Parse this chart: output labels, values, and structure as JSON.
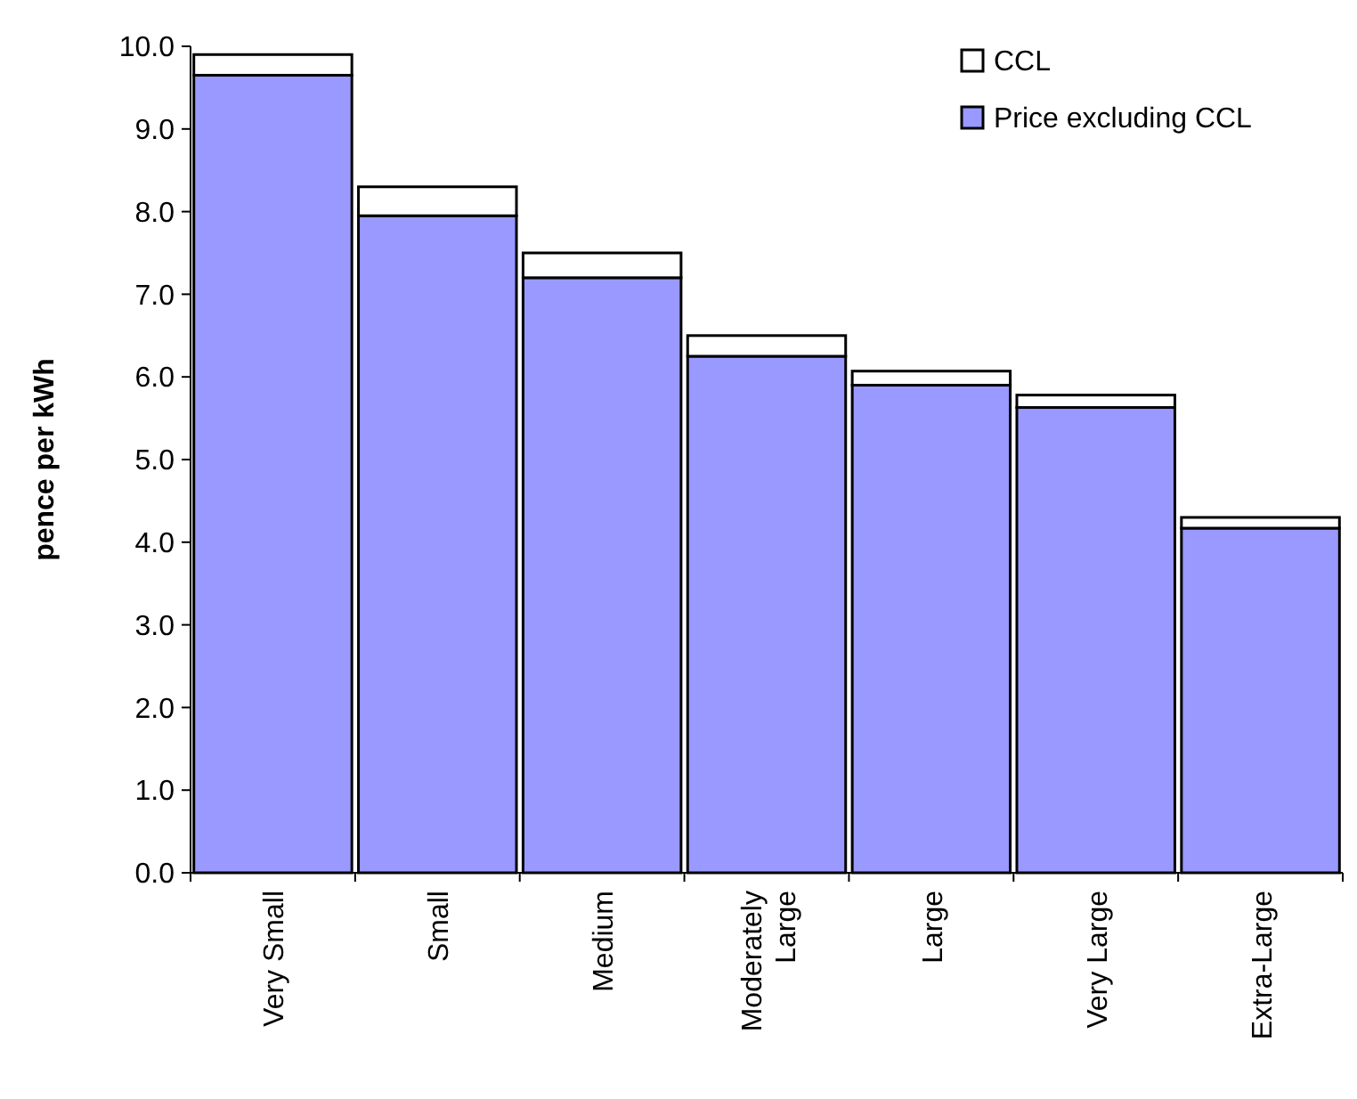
{
  "chart_data": {
    "type": "bar",
    "stacked": true,
    "ylabel": "pence per kWh",
    "categories": [
      "Very Small",
      "Small",
      "Medium",
      "Moderately Large",
      "Large",
      "Very Large",
      "Extra-Large"
    ],
    "series": [
      {
        "name": "Price excluding CCL",
        "color": "#9999ff",
        "values": [
          9.65,
          7.95,
          7.2,
          6.25,
          5.9,
          5.63,
          4.17
        ]
      },
      {
        "name": "CCL",
        "color": "#ffffff",
        "values": [
          0.25,
          0.35,
          0.3,
          0.25,
          0.17,
          0.15,
          0.13
        ]
      }
    ],
    "ylim": [
      0,
      10
    ],
    "yticks": [
      {
        "value": 0,
        "label": "0.0"
      },
      {
        "value": 1,
        "label": "1.0"
      },
      {
        "value": 2,
        "label": "2.0"
      },
      {
        "value": 3,
        "label": "3.0"
      },
      {
        "value": 4,
        "label": "4.0"
      },
      {
        "value": 5,
        "label": "5.0"
      },
      {
        "value": 6,
        "label": "6.0"
      },
      {
        "value": 7,
        "label": "7.0"
      },
      {
        "value": 8,
        "label": "8.0"
      },
      {
        "value": 9,
        "label": "9.0"
      },
      {
        "value": 10,
        "label": "10.0"
      }
    ],
    "legend": "top right",
    "grid": false
  }
}
